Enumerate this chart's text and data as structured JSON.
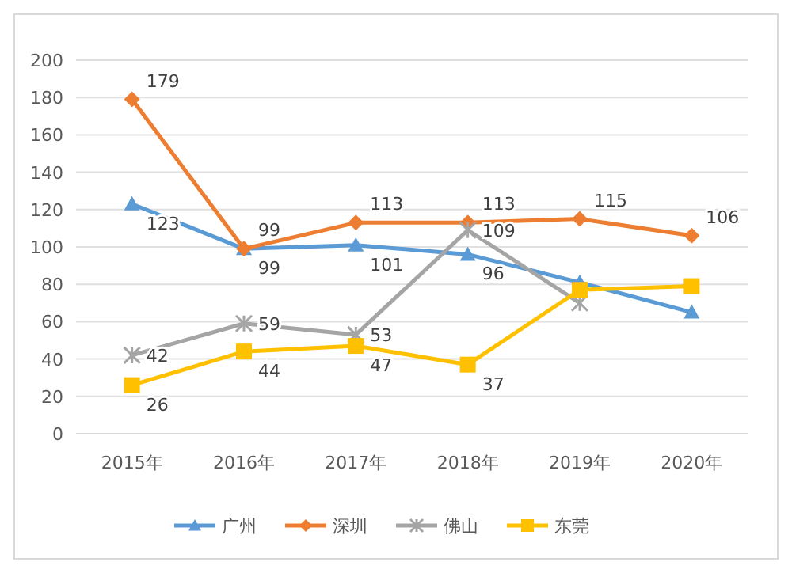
{
  "chart_data": {
    "type": "line",
    "categories": [
      "2015年",
      "2016年",
      "2017年",
      "2018年",
      "2019年",
      "2020年"
    ],
    "ylim": [
      0,
      200
    ],
    "yticks": [
      0,
      20,
      40,
      60,
      80,
      100,
      120,
      140,
      160,
      180,
      200
    ],
    "grid": "y",
    "legend": "bottom",
    "series": [
      {
        "name": "广州",
        "color": "#5b9bd5",
        "marker": "triangle",
        "values": [
          123,
          99,
          101,
          96,
          81,
          65
        ],
        "value_labels": [
          "123",
          "99",
          "101",
          "96",
          null,
          null
        ]
      },
      {
        "name": "深圳",
        "color": "#ed7d31",
        "marker": "diamond",
        "values": [
          179,
          99,
          113,
          113,
          115,
          106
        ],
        "value_labels": [
          "179",
          "99",
          "113",
          "113",
          "115",
          "106"
        ]
      },
      {
        "name": "佛山",
        "color": "#a5a5a5",
        "marker": "cross",
        "values": [
          42,
          59,
          53,
          109,
          70,
          null
        ],
        "value_labels": [
          "42",
          "59",
          "53",
          "109",
          null,
          null
        ]
      },
      {
        "name": "东莞",
        "color": "#ffc000",
        "marker": "square",
        "values": [
          26,
          44,
          47,
          37,
          77,
          79
        ],
        "value_labels": [
          "26",
          "44",
          "47",
          "37",
          null,
          null
        ]
      }
    ]
  }
}
